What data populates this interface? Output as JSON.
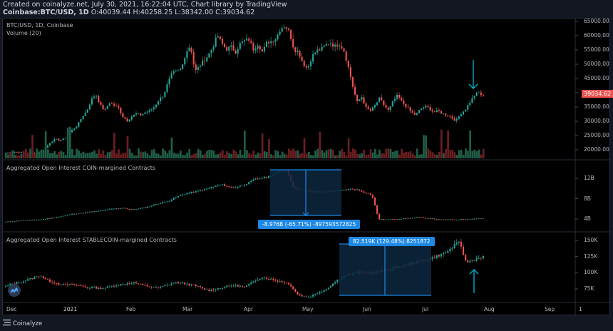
{
  "header": {
    "created_line": "Created on coinalyze.net, July 30, 2021, 16:22:04 UTC, Chart library by TradingView",
    "symbol_line": "Coinbase:BTC/USD, 1D",
    "ohlc": "O:40039.44 H:40258.25 L:38342.00 C:39034.62"
  },
  "colors": {
    "up": "#26a69a",
    "down": "#ef5350",
    "vol_up": "#1f5e47",
    "vol_down": "#6b1f22",
    "measure": "#1e88e5",
    "arrow": "#00bcd4",
    "price_tag": "#ef5350"
  },
  "footer": {
    "brand": "Coinalyze"
  },
  "chart_data": [
    {
      "type": "candlestick",
      "title": "BTC/USD, 1D, Coinbase",
      "subtitle": "Volume (20)",
      "y_ticks": [
        "65000.00",
        "60000.00",
        "55000.00",
        "50000.00",
        "45000.00",
        "40000.00",
        "35000.00",
        "30000.00",
        "25000.00",
        "20000.00"
      ],
      "ylim": [
        17000,
        66000
      ],
      "last_price": "39034.62",
      "close_path": [
        18800,
        19100,
        19300,
        19200,
        19000,
        18900,
        18700,
        19200,
        19500,
        21000,
        23000,
        23800,
        23500,
        24000,
        26000,
        27500,
        29000,
        32000,
        34000,
        38000,
        40000,
        36000,
        34000,
        37000,
        36000,
        35000,
        32000,
        30500,
        32000,
        33000,
        32500,
        33500,
        34000,
        35500,
        38000,
        39500,
        44000,
        47500,
        48000,
        49000,
        55000,
        57500,
        48000,
        50000,
        52000,
        54000,
        57000,
        61000,
        58000,
        56000,
        57000,
        55000,
        58000,
        59000,
        59500,
        56000,
        58000,
        55000,
        58500,
        59000,
        60000,
        63500,
        64500,
        62000,
        56000,
        55000,
        51000,
        49000,
        53500,
        55500,
        56000,
        57500,
        58500,
        57000,
        58000,
        56000,
        50000,
        43000,
        37000,
        39000,
        35000,
        34000,
        36000,
        38500,
        36000,
        34000,
        37500,
        39500,
        37000,
        35500,
        33500,
        32500,
        34500,
        35500,
        35000,
        33500,
        34000,
        33000,
        32500,
        31500,
        30500,
        33000,
        34500,
        37000,
        39500,
        40500,
        39034
      ],
      "annotation": "down arrow at ~42000 near Jul 26"
    },
    {
      "type": "candlestick",
      "title": "Aggregated Open Interest COIN-margined Contracts",
      "y_ticks": [
        "12B",
        "8B",
        "4B"
      ],
      "ylim": [
        3000000000,
        14500000000
      ],
      "close_path": [
        4.4,
        4.5,
        4.6,
        4.7,
        4.7,
        4.8,
        4.9,
        5.1,
        5.3,
        5.5,
        5.8,
        5.9,
        6.0,
        6.2,
        6.3,
        6.5,
        6.7,
        6.8,
        6.9,
        6.6,
        6.7,
        6.9,
        7.2,
        7.6,
        7.9,
        8.2,
        8.8,
        9.3,
        9.6,
        9.8,
        10.1,
        10.4,
        10.8,
        11.1,
        10.7,
        10.5,
        10.9,
        11.3,
        12.0,
        12.3,
        12.4,
        13.0,
        13.5,
        13.6,
        10.5,
        10.1,
        10.0,
        9.8,
        9.7,
        9.8,
        9.9,
        10.0,
        10.2,
        10.3,
        10.1,
        9.6,
        9.2,
        4.9,
        4.8,
        4.9,
        4.9,
        5.0,
        5.1,
        5.2,
        5.1,
        5.0,
        4.8,
        4.8,
        4.8,
        4.8,
        4.9,
        4.9,
        5.0,
        5.0
      ],
      "measurement": {
        "label": "-8.976B (-65.71%) -897593572825",
        "change": "-8.976B",
        "percent": "-65.71%"
      }
    },
    {
      "type": "candlestick",
      "title": "Aggregated Open Interest STABLECOIN-margined Contracts",
      "y_ticks": [
        "150K",
        "125K",
        "100K",
        "75K"
      ],
      "ylim": [
        60000,
        155000
      ],
      "close_path": [
        82,
        86,
        88,
        90,
        93,
        96,
        98,
        92,
        89,
        86,
        84,
        85,
        84,
        83,
        80,
        81,
        79,
        80,
        82,
        84,
        85,
        87,
        88,
        85,
        83,
        81,
        80,
        82,
        85,
        88,
        87,
        86,
        84,
        82,
        78,
        76,
        78,
        80,
        82,
        84,
        83,
        81,
        86,
        92,
        96,
        94,
        92,
        90,
        88,
        83,
        71,
        67,
        66,
        70,
        74,
        78,
        85,
        92,
        98,
        100,
        102,
        104,
        103,
        102,
        104,
        107,
        108,
        111,
        113,
        115,
        118,
        120,
        121,
        124,
        128,
        131,
        136,
        144,
        149,
        119,
        121,
        125,
        127
      ],
      "measurement": {
        "label": "82.519K (129.48%) 8251872",
        "change": "82.519K",
        "percent": "129.48%"
      },
      "annotation": "up arrow below dip near Jul 27"
    }
  ],
  "x_axis": {
    "ticks": [
      "Dec",
      "2021",
      "Feb",
      "Mar",
      "Apr",
      "May",
      "Jun",
      "Jul",
      "Aug",
      "Sep",
      "1"
    ]
  }
}
